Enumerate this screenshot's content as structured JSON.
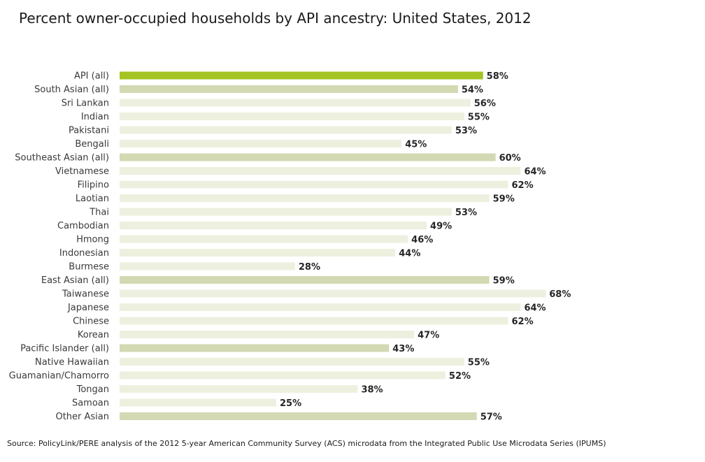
{
  "chart_data": {
    "type": "bar",
    "orientation": "horizontal",
    "title": "Percent owner-occupied households by API ancestry: United States, 2012",
    "xlim": [
      0,
      100
    ],
    "grid": false,
    "categories": [
      "API (all)",
      "South Asian (all)",
      "Sri Lankan",
      "Indian",
      "Pakistani",
      "Bengali",
      "Southeast Asian (all)",
      "Vietnamese",
      "Filipino",
      "Laotian",
      "Thai",
      "Cambodian",
      "Hmong",
      "Indonesian",
      "Burmese",
      "East Asian (all)",
      "Taiwanese",
      "Japanese",
      "Chinese",
      "Korean",
      "Pacific Islander (all)",
      "Native Hawaiian",
      "Guamanian/Chamorro",
      "Tongan",
      "Samoan",
      "Other Asian"
    ],
    "values": [
      58,
      54,
      56,
      55,
      53,
      45,
      60,
      64,
      62,
      59,
      53,
      49,
      46,
      44,
      28,
      59,
      68,
      64,
      62,
      47,
      43,
      55,
      52,
      38,
      25,
      57
    ],
    "value_labels": [
      "58%",
      "54%",
      "56%",
      "55%",
      "53%",
      "45%",
      "60%",
      "64%",
      "62%",
      "59%",
      "53%",
      "49%",
      "46%",
      "44%",
      "28%",
      "59%",
      "68%",
      "64%",
      "62%",
      "47%",
      "43%",
      "55%",
      "52%",
      "38%",
      "25%",
      "57%"
    ],
    "bar_levels": [
      "total",
      "group",
      "detail",
      "detail",
      "detail",
      "detail",
      "group",
      "detail",
      "detail",
      "detail",
      "detail",
      "detail",
      "detail",
      "detail",
      "detail",
      "group",
      "detail",
      "detail",
      "detail",
      "detail",
      "group",
      "detail",
      "detail",
      "detail",
      "detail",
      "group"
    ]
  },
  "colors": {
    "total": "#a3c422",
    "group": "#d2d9b3",
    "detail": "#eef0df"
  },
  "source": "Source: PolicyLink/PERE analysis of the 2012 5-year American Community Survey (ACS) microdata from the Integrated Public Use Microdata Series (IPUMS)"
}
